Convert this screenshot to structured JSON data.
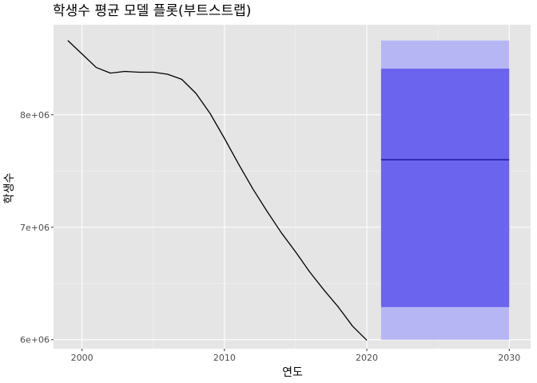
{
  "chart_data": {
    "type": "line",
    "title": "학생수 평균 모델 플롯(부트스트랩)",
    "xlabel": "연도",
    "ylabel": "학생수",
    "xlim": [
      1998,
      2031.5
    ],
    "ylim": [
      5920000,
      8800000
    ],
    "x_ticks": [
      2000,
      2010,
      2020,
      2030
    ],
    "x_tick_labels": [
      "2000",
      "2010",
      "2020",
      "2030"
    ],
    "y_ticks": [
      6000000,
      7000000,
      8000000
    ],
    "y_tick_labels": [
      "6e+06",
      "7e+06",
      "8e+06"
    ],
    "grid": true,
    "panel_background": "#e5e5e5",
    "series": [
      {
        "x": [
          1999,
          2000,
          2001,
          2002,
          2003,
          2004,
          2005,
          2006,
          2007,
          2008,
          2009,
          2010,
          2011,
          2012,
          2013,
          2014,
          2015,
          2016,
          2017,
          2018,
          2019,
          2020
        ],
        "values": [
          8660000,
          8540000,
          8420000,
          8370000,
          8385000,
          8378000,
          8378000,
          8360000,
          8315000,
          8190000,
          8010000,
          7790000,
          7560000,
          7340000,
          7140000,
          6950000,
          6780000,
          6600000,
          6440000,
          6290000,
          6120000,
          5995000
        ],
        "color": "#000000"
      }
    ],
    "forecast": {
      "x_start": 2021,
      "x_end": 2030,
      "mean": 7600000,
      "interval_80": [
        6290000,
        8410000
      ],
      "interval_95": [
        6000000,
        8660000
      ],
      "mean_color": "#00008b",
      "band_80_color": "#6a64ee",
      "band_95_color": "#b7b6f5"
    }
  }
}
